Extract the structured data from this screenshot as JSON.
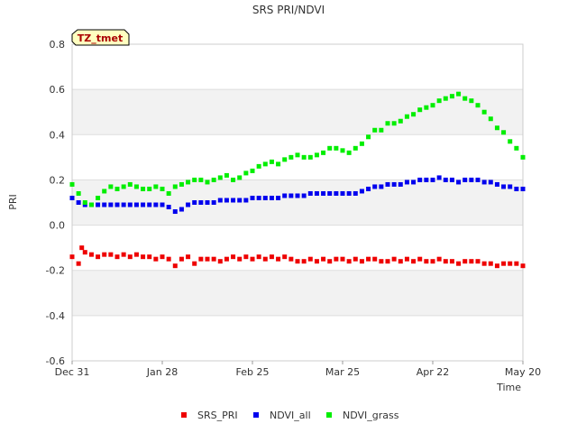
{
  "chart_data": {
    "type": "scatter",
    "title": "SRS PRI/NDVI",
    "xlabel": "Time",
    "ylabel": "PRI",
    "badge": "TZ_tmet",
    "x_unit": "days since Dec 31",
    "xlim": [
      0,
      140
    ],
    "ylim": [
      -0.6,
      0.8
    ],
    "yticks": [
      -0.6,
      -0.4,
      -0.2,
      0.0,
      0.2,
      0.4,
      0.6,
      0.8
    ],
    "ytick_labels": [
      "-0.6",
      "-0.4",
      "-0.2",
      "0.0",
      "0.2",
      "0.4",
      "0.6",
      "0.8"
    ],
    "xticks": [
      {
        "value": 0,
        "label": "Dec 31"
      },
      {
        "value": 28,
        "label": "Jan 28"
      },
      {
        "value": 56,
        "label": "Feb 25"
      },
      {
        "value": 84,
        "label": "Mar 25"
      },
      {
        "value": 112,
        "label": "Apr 22"
      },
      {
        "value": 140,
        "label": "May 20"
      }
    ],
    "legend_position": "bottom-center",
    "series": [
      {
        "name": "SRS_PRI",
        "color": "#ee0000",
        "x": [
          0,
          2,
          3,
          4,
          6,
          8,
          10,
          12,
          14,
          16,
          18,
          20,
          22,
          24,
          26,
          28,
          30,
          32,
          34,
          36,
          38,
          40,
          42,
          44,
          46,
          48,
          50,
          52,
          54,
          56,
          58,
          60,
          62,
          64,
          66,
          68,
          70,
          72,
          74,
          76,
          78,
          80,
          82,
          84,
          86,
          88,
          90,
          92,
          94,
          96,
          98,
          100,
          102,
          104,
          106,
          108,
          110,
          112,
          114,
          116,
          118,
          120,
          122,
          124,
          126,
          128,
          130,
          132,
          134,
          136,
          138,
          140
        ],
        "y": [
          -0.14,
          -0.17,
          -0.1,
          -0.12,
          -0.13,
          -0.14,
          -0.13,
          -0.13,
          -0.14,
          -0.13,
          -0.14,
          -0.13,
          -0.14,
          -0.14,
          -0.15,
          -0.14,
          -0.15,
          -0.18,
          -0.15,
          -0.14,
          -0.17,
          -0.15,
          -0.15,
          -0.15,
          -0.16,
          -0.15,
          -0.14,
          -0.15,
          -0.14,
          -0.15,
          -0.14,
          -0.15,
          -0.14,
          -0.15,
          -0.14,
          -0.15,
          -0.16,
          -0.16,
          -0.15,
          -0.16,
          -0.15,
          -0.16,
          -0.15,
          -0.15,
          -0.16,
          -0.15,
          -0.16,
          -0.15,
          -0.15,
          -0.16,
          -0.16,
          -0.15,
          -0.16,
          -0.15,
          -0.16,
          -0.15,
          -0.16,
          -0.16,
          -0.15,
          -0.16,
          -0.16,
          -0.17,
          -0.16,
          -0.16,
          -0.16,
          -0.17,
          -0.17,
          -0.18,
          -0.17,
          -0.17,
          -0.17,
          -0.18
        ]
      },
      {
        "name": "NDVI_all",
        "color": "#0000ee",
        "x": [
          0,
          2,
          4,
          6,
          8,
          10,
          12,
          14,
          16,
          18,
          20,
          22,
          24,
          26,
          28,
          30,
          32,
          34,
          36,
          38,
          40,
          42,
          44,
          46,
          48,
          50,
          52,
          54,
          56,
          58,
          60,
          62,
          64,
          66,
          68,
          70,
          72,
          74,
          76,
          78,
          80,
          82,
          84,
          86,
          88,
          90,
          92,
          94,
          96,
          98,
          100,
          102,
          104,
          106,
          108,
          110,
          112,
          114,
          116,
          118,
          120,
          122,
          124,
          126,
          128,
          130,
          132,
          134,
          136,
          138,
          140
        ],
        "y": [
          0.12,
          0.1,
          0.09,
          0.09,
          0.09,
          0.09,
          0.09,
          0.09,
          0.09,
          0.09,
          0.09,
          0.09,
          0.09,
          0.09,
          0.09,
          0.08,
          0.06,
          0.07,
          0.09,
          0.1,
          0.1,
          0.1,
          0.1,
          0.11,
          0.11,
          0.11,
          0.11,
          0.11,
          0.12,
          0.12,
          0.12,
          0.12,
          0.12,
          0.13,
          0.13,
          0.13,
          0.13,
          0.14,
          0.14,
          0.14,
          0.14,
          0.14,
          0.14,
          0.14,
          0.14,
          0.15,
          0.16,
          0.17,
          0.17,
          0.18,
          0.18,
          0.18,
          0.19,
          0.19,
          0.2,
          0.2,
          0.2,
          0.21,
          0.2,
          0.2,
          0.19,
          0.2,
          0.2,
          0.2,
          0.19,
          0.19,
          0.18,
          0.17,
          0.17,
          0.16,
          0.16
        ]
      },
      {
        "name": "NDVI_grass",
        "color": "#00ee00",
        "x": [
          0,
          2,
          4,
          6,
          8,
          10,
          12,
          14,
          16,
          18,
          20,
          22,
          24,
          26,
          28,
          30,
          32,
          34,
          36,
          38,
          40,
          42,
          44,
          46,
          48,
          50,
          52,
          54,
          56,
          58,
          60,
          62,
          64,
          66,
          68,
          70,
          72,
          74,
          76,
          78,
          80,
          82,
          84,
          86,
          88,
          90,
          92,
          94,
          96,
          98,
          100,
          102,
          104,
          106,
          108,
          110,
          112,
          114,
          116,
          118,
          120,
          122,
          124,
          126,
          128,
          130,
          132,
          134,
          136,
          138,
          140
        ],
        "y": [
          0.18,
          0.14,
          0.1,
          0.09,
          0.12,
          0.15,
          0.17,
          0.16,
          0.17,
          0.18,
          0.17,
          0.16,
          0.16,
          0.17,
          0.16,
          0.14,
          0.17,
          0.18,
          0.19,
          0.2,
          0.2,
          0.19,
          0.2,
          0.21,
          0.22,
          0.2,
          0.21,
          0.23,
          0.24,
          0.26,
          0.27,
          0.28,
          0.27,
          0.29,
          0.3,
          0.31,
          0.3,
          0.3,
          0.31,
          0.32,
          0.34,
          0.34,
          0.33,
          0.32,
          0.34,
          0.36,
          0.39,
          0.42,
          0.42,
          0.45,
          0.45,
          0.46,
          0.48,
          0.49,
          0.51,
          0.52,
          0.53,
          0.55,
          0.56,
          0.57,
          0.58,
          0.56,
          0.55,
          0.53,
          0.5,
          0.47,
          0.43,
          0.41,
          0.37,
          0.34,
          0.3
        ]
      }
    ]
  }
}
